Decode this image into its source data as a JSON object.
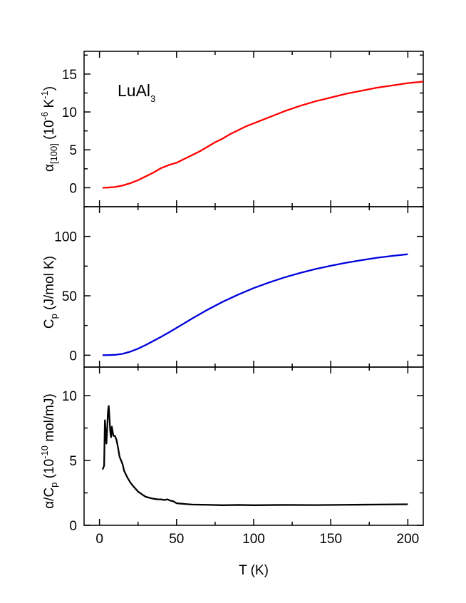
{
  "chart_data": [
    {
      "type": "line",
      "annotation": {
        "main": "LuAl",
        "sub": "3"
      },
      "ylabel": {
        "symbol": "α",
        "sub": "[100]",
        "rest1": " (10",
        "sup1": "-6",
        "rest2": " K",
        "sup2": "-1",
        "rest3": ")"
      },
      "xlim": [
        -10,
        210
      ],
      "ylim": [
        -2.5,
        18
      ],
      "yticks": [
        0,
        5,
        10,
        15
      ],
      "ytick_labels": [
        "0",
        "5",
        "10",
        "15"
      ],
      "series": [
        {
          "color": "#ff0000",
          "x": [
            2,
            5,
            10,
            15,
            20,
            25,
            30,
            35,
            40,
            45,
            50,
            55,
            60,
            65,
            70,
            75,
            80,
            85,
            90,
            95,
            100,
            110,
            120,
            130,
            140,
            150,
            160,
            170,
            180,
            190,
            200,
            210
          ],
          "y": [
            0.0,
            0.02,
            0.1,
            0.3,
            0.6,
            1.0,
            1.5,
            2.0,
            2.6,
            3.0,
            3.3,
            3.8,
            4.3,
            4.8,
            5.4,
            6.0,
            6.5,
            7.1,
            7.6,
            8.1,
            8.5,
            9.3,
            10.1,
            10.8,
            11.4,
            11.9,
            12.4,
            12.8,
            13.2,
            13.5,
            13.8,
            14.0
          ]
        }
      ]
    },
    {
      "type": "line",
      "ylabel": {
        "symbol": "C",
        "sub": "p",
        "rest1": " (J/mol K)"
      },
      "xlim": [
        -10,
        210
      ],
      "ylim": [
        -10,
        125
      ],
      "yticks": [
        0,
        50,
        100
      ],
      "ytick_labels": [
        "0",
        "50",
        "100"
      ],
      "series": [
        {
          "color": "#0000dd",
          "x": [
            2,
            5,
            10,
            15,
            20,
            25,
            30,
            35,
            40,
            45,
            50,
            60,
            70,
            80,
            90,
            100,
            110,
            120,
            130,
            140,
            150,
            160,
            170,
            180,
            190,
            200
          ],
          "y": [
            0.0,
            0.05,
            0.3,
            1.2,
            3.0,
            5.5,
            8.6,
            12.0,
            15.5,
            19.2,
            23.0,
            30.8,
            38.2,
            45.0,
            51.0,
            56.5,
            61.2,
            65.5,
            69.2,
            72.5,
            75.3,
            77.8,
            80.0,
            82.0,
            83.6,
            85.0
          ]
        }
      ]
    },
    {
      "type": "line",
      "xlabel": "T (K)",
      "ylabel": {
        "symbol": "α/C",
        "sub": "p",
        "rest1": " (10",
        "sup1": "-10",
        "rest2": " mol/mJ)"
      },
      "xlim": [
        -10,
        210
      ],
      "ylim": [
        0,
        12.2
      ],
      "yticks": [
        0,
        5,
        10
      ],
      "ytick_labels": [
        "0",
        "5",
        "10"
      ],
      "xticks": [
        0,
        50,
        100,
        150,
        200
      ],
      "xtick_labels": [
        "0",
        "50",
        "100",
        "150",
        "200"
      ],
      "series": [
        {
          "color": "#000000",
          "x": [
            2,
            3,
            3.5,
            4,
            4.5,
            5,
            5.5,
            6,
            6.5,
            7,
            7.5,
            8,
            9,
            10,
            11,
            12,
            13,
            14,
            15,
            16,
            18,
            20,
            22,
            25,
            28,
            30,
            33,
            35,
            38,
            40,
            42,
            44,
            46,
            48,
            50,
            55,
            60,
            70,
            80,
            90,
            100,
            120,
            140,
            160,
            180,
            200
          ],
          "y": [
            4.3,
            4.6,
            8.1,
            7.2,
            6.3,
            7.5,
            8.8,
            9.2,
            8.2,
            7.2,
            6.8,
            7.6,
            6.9,
            6.9,
            6.6,
            6.0,
            5.3,
            5.0,
            4.7,
            4.2,
            3.7,
            3.3,
            3.0,
            2.6,
            2.35,
            2.2,
            2.1,
            2.05,
            2.0,
            2.0,
            1.95,
            2.0,
            1.9,
            1.85,
            1.7,
            1.65,
            1.6,
            1.58,
            1.55,
            1.57,
            1.55,
            1.57,
            1.56,
            1.58,
            1.6,
            1.62
          ]
        }
      ]
    }
  ]
}
